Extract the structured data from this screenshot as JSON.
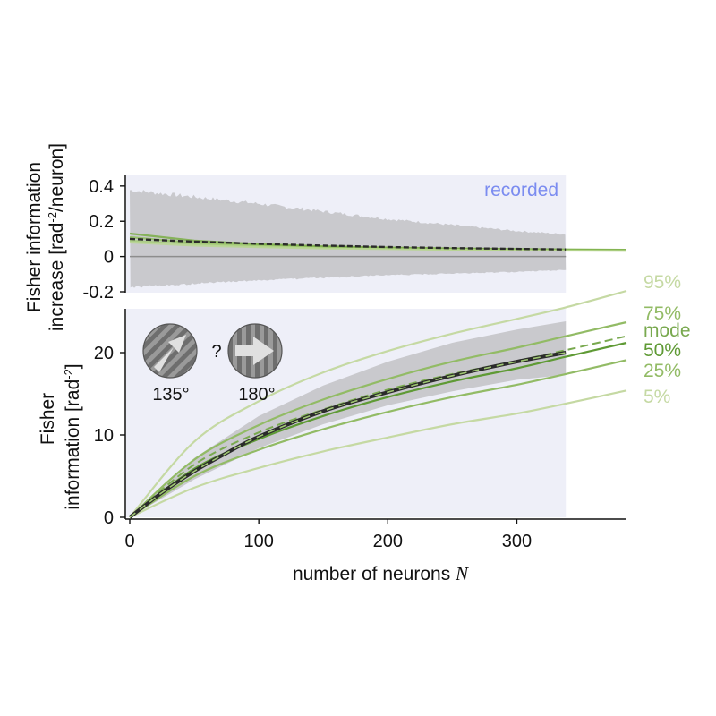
{
  "chart_data": [
    {
      "panel": "top",
      "type": "line",
      "ylabel_line1": "Fisher information",
      "ylabel_line2": "increase [rad",
      "ylabel_sup": "-2",
      "ylabel_tail": "/neuron]",
      "annotation": "recorded",
      "xlim": [
        0,
        385
      ],
      "ylim": [
        -0.2,
        0.45
      ],
      "yticks": [
        0.4,
        0.2,
        0,
        -0.2
      ],
      "ytick_labels": [
        "0.4",
        "0.2",
        "0",
        "-0.2"
      ],
      "shaded_region_x": [
        0,
        338
      ],
      "band": {
        "x": [
          0,
          100,
          200,
          300,
          338
        ],
        "upper": [
          0.39,
          0.31,
          0.22,
          0.15,
          0.13
        ],
        "lower": [
          -0.18,
          -0.14,
          -0.11,
          -0.09,
          -0.08
        ]
      },
      "series": [
        {
          "x": [
            0,
            50,
            100,
            150,
            200,
            250,
            300,
            338
          ],
          "values": [
            0.1,
            0.085,
            0.072,
            0.062,
            0.054,
            0.048,
            0.043,
            0.04
          ]
        },
        {
          "x": [
            0,
            50,
            100,
            150,
            200,
            250,
            300,
            385
          ],
          "values": [
            0.11,
            0.078,
            0.064,
            0.055,
            0.049,
            0.044,
            0.04,
            0.036
          ]
        },
        {
          "x": [
            0,
            50,
            100,
            150,
            200,
            250,
            300,
            385
          ],
          "values": [
            0.09,
            0.07,
            0.058,
            0.05,
            0.045,
            0.041,
            0.037,
            0.034
          ]
        },
        {
          "x": [
            0,
            50,
            100,
            150,
            200,
            250,
            300,
            385
          ],
          "values": [
            0.13,
            0.09,
            0.07,
            0.058,
            0.051,
            0.046,
            0.042,
            0.038
          ]
        },
        {
          "x": [
            0,
            50,
            100,
            150,
            200,
            250,
            300,
            385
          ],
          "values": [
            0.08,
            0.062,
            0.053,
            0.046,
            0.042,
            0.038,
            0.035,
            0.032
          ]
        }
      ]
    },
    {
      "panel": "bottom",
      "type": "line",
      "ylabel_line1": "Fisher",
      "ylabel_line2": "information [rad",
      "ylabel_sup": "-2",
      "ylabel_tail": "]",
      "xlabel": "number of neurons ",
      "xlabel_var": "N",
      "xlim": [
        0,
        385
      ],
      "ylim": [
        0,
        25
      ],
      "xticks": [
        0,
        100,
        200,
        300
      ],
      "xtick_labels": [
        "0",
        "100",
        "200",
        "300"
      ],
      "yticks": [
        0,
        10,
        20
      ],
      "ytick_labels": [
        "0",
        "10",
        "20"
      ],
      "shaded_region_x": [
        0,
        338
      ],
      "band": {
        "x": [
          0,
          50,
          100,
          150,
          200,
          250,
          300,
          338
        ],
        "upper": [
          0,
          7.2,
          12.3,
          16.0,
          18.9,
          21.2,
          22.8,
          23.8
        ],
        "lower": [
          0,
          4.6,
          8.4,
          11.3,
          13.6,
          15.3,
          16.7,
          17.3
        ]
      },
      "recorded": {
        "x": [
          0,
          25,
          50,
          75,
          100,
          150,
          200,
          250,
          300,
          338
        ],
        "values": [
          0,
          3.0,
          5.6,
          7.8,
          9.8,
          12.9,
          15.2,
          17.2,
          18.9,
          20.0
        ]
      },
      "quantiles": [
        {
          "label": "95%",
          "color": "#c5d9a3",
          "values": [
            0,
            9.2,
            14.1,
            17.6,
            20.2,
            22.3,
            24.1,
            25.5,
            27.5
          ]
        },
        {
          "label": "75%",
          "color": "#92bb65",
          "values": [
            0,
            7.0,
            11.2,
            14.3,
            16.8,
            18.9,
            20.6,
            22.0,
            23.7
          ]
        },
        {
          "label": "mode",
          "color": "#79a94f",
          "values": [
            0,
            6.4,
            10.3,
            13.1,
            15.5,
            17.4,
            19.0,
            20.3,
            22.0
          ]
        },
        {
          "label": "50%",
          "color": "#5f9a35",
          "values": [
            0,
            5.9,
            9.5,
            12.3,
            14.6,
            16.5,
            18.1,
            19.5,
            21.2
          ]
        },
        {
          "label": "25%",
          "color": "#92bb65",
          "values": [
            0,
            5.0,
            8.2,
            10.7,
            12.8,
            14.6,
            16.1,
            17.4,
            19.1
          ]
        },
        {
          "label": "5%",
          "color": "#c5d9a3",
          "values": [
            0,
            3.6,
            6.0,
            8.0,
            9.7,
            11.3,
            12.6,
            13.8,
            15.4
          ]
        }
      ],
      "quantile_x": [
        0,
        50,
        100,
        150,
        200,
        250,
        300,
        338,
        385
      ],
      "annotations": {
        "angle_a": "135°",
        "question": "?",
        "angle_b": "180°"
      }
    }
  ],
  "colors": {
    "shade_bg": "#eeeff8",
    "band": "#c9c9cd",
    "recorded_line": "#2b2b2b",
    "mode_dash": "#79a94f",
    "annotation_blue": "#7b8cf0"
  },
  "icons": [
    "stimulus-135-deg-icon",
    "stimulus-180-deg-icon"
  ]
}
